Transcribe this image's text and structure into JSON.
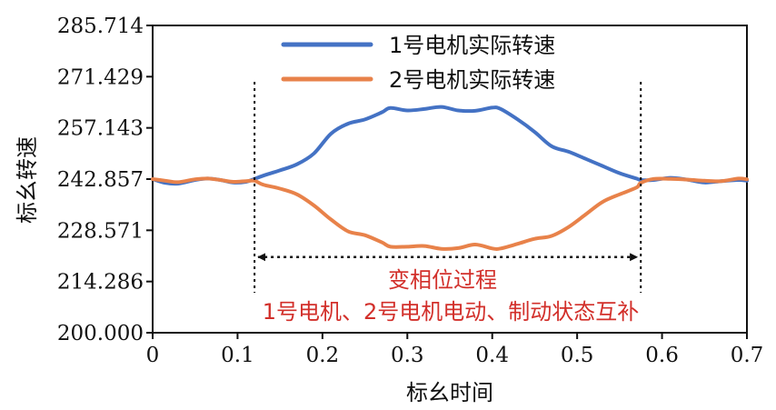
{
  "chart_data": {
    "type": "line",
    "xlabel": "标幺时间",
    "ylabel": "标幺转速",
    "xlim": [
      0,
      0.7
    ],
    "ylim": [
      200.0,
      285.714
    ],
    "xticks": [
      "0",
      "0.1",
      "0.2",
      "0.3",
      "0.4",
      "0.5",
      "0.6",
      "0.7"
    ],
    "yticks": [
      "200.000",
      "214.286",
      "228.571",
      "242.857",
      "257.143",
      "271.429",
      "285.714"
    ],
    "grid": false,
    "legend_position": "top-center",
    "series": [
      {
        "name": "1号电机实际转速",
        "color": "#4472c4",
        "x": [
          0,
          0.015,
          0.03,
          0.05,
          0.065,
          0.08,
          0.095,
          0.11,
          0.12,
          0.13,
          0.15,
          0.17,
          0.19,
          0.21,
          0.23,
          0.25,
          0.27,
          0.28,
          0.3,
          0.32,
          0.34,
          0.36,
          0.38,
          0.4,
          0.41,
          0.43,
          0.45,
          0.47,
          0.49,
          0.51,
          0.53,
          0.55,
          0.57,
          0.575,
          0.59,
          0.61,
          0.63,
          0.65,
          0.67,
          0.69,
          0.7
        ],
        "y": [
          242.857,
          241.8,
          241.6,
          242.6,
          243.0,
          242.6,
          241.9,
          242.1,
          242.9,
          243.8,
          245.3,
          247.0,
          250.0,
          255.5,
          258.3,
          259.5,
          261.5,
          262.7,
          262.0,
          262.4,
          263.0,
          262.0,
          261.9,
          262.8,
          262.4,
          259.5,
          256.0,
          252.0,
          250.5,
          248.5,
          246.5,
          244.5,
          243.0,
          242.6,
          242.6,
          243.2,
          242.7,
          241.9,
          242.3,
          242.6,
          242.4
        ],
        "data_colors_note": ""
      },
      {
        "name": "2号电机实际转速",
        "color": "#e8824a",
        "x": [
          0,
          0.015,
          0.03,
          0.05,
          0.065,
          0.08,
          0.095,
          0.11,
          0.12,
          0.13,
          0.15,
          0.17,
          0.19,
          0.21,
          0.23,
          0.25,
          0.27,
          0.28,
          0.3,
          0.32,
          0.34,
          0.36,
          0.38,
          0.4,
          0.41,
          0.43,
          0.45,
          0.47,
          0.49,
          0.51,
          0.53,
          0.55,
          0.57,
          0.575,
          0.59,
          0.61,
          0.63,
          0.65,
          0.67,
          0.69,
          0.7
        ],
        "y": [
          242.857,
          242.4,
          242.0,
          242.8,
          243.0,
          242.6,
          242.1,
          242.3,
          242.4,
          241.3,
          240.2,
          238.6,
          235.5,
          231.6,
          228.3,
          227.2,
          225.2,
          224.0,
          224.0,
          224.2,
          223.4,
          223.6,
          224.6,
          223.5,
          223.5,
          224.8,
          226.2,
          227.0,
          229.5,
          233.0,
          236.5,
          238.6,
          240.5,
          241.8,
          242.9,
          242.9,
          242.7,
          242.4,
          242.3,
          243.0,
          242.8
        ]
      }
    ],
    "annotations": {
      "vline_left_x": 0.12,
      "vline_right_x": 0.575,
      "arrow_y": 221.1,
      "arrow_label": "变相位过程",
      "description_label": "1号电机、2号电机电动、制动状态互补"
    }
  }
}
